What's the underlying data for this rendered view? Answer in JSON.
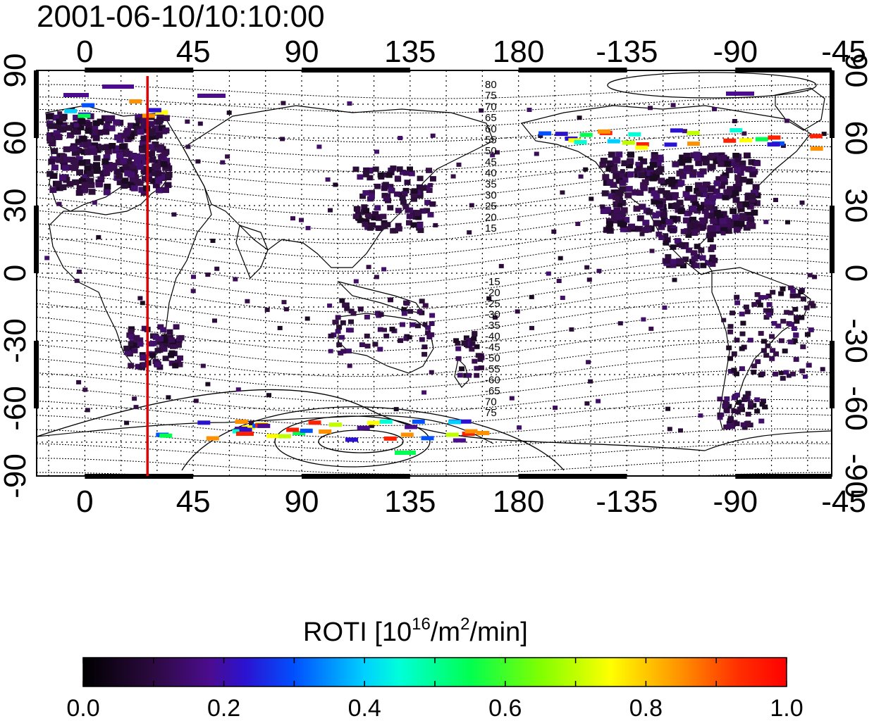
{
  "title": "2001-06-10/10:10:00",
  "map": {
    "lon_ticks_top": [
      "0",
      "45",
      "90",
      "135",
      "180",
      "-135",
      "-90",
      "-45"
    ],
    "lon_ticks_bottom": [
      "0",
      "45",
      "90",
      "135",
      "180",
      "-135",
      "-90",
      "-45"
    ],
    "lat_ticks_left": [
      "90",
      "60",
      "30",
      "0",
      "-30",
      "-60",
      "-90"
    ],
    "lat_ticks_right": [
      "90",
      "60",
      "30",
      "0",
      "-30",
      "-60",
      "-90"
    ],
    "lon_range": [
      -20,
      310
    ],
    "lat_range": [
      -90,
      90
    ],
    "grid": true,
    "terminator_longitude": 26,
    "terminator_color": "#e00000",
    "mlat_labels_north": [
      "80",
      "75",
      "70",
      "65",
      "60",
      "55",
      "50",
      "45",
      "40",
      "35",
      "30",
      "25",
      "20",
      "15"
    ],
    "mlat_labels_south": [
      "-15",
      "-20",
      "-25",
      "-30",
      "-35",
      "-40",
      "-45",
      "-50",
      "-55",
      "-60",
      "-65",
      "70",
      "75"
    ]
  },
  "colorbar": {
    "title_prefix": "ROTI  [10",
    "title_sup1": "16",
    "title_mid": "/m",
    "title_sup2": "2",
    "title_suffix": "/min]",
    "tick_labels": [
      "0.0",
      "0.2",
      "0.4",
      "0.6",
      "0.8",
      "1.0"
    ],
    "range": [
      0.0,
      1.0
    ],
    "colors": [
      "#000000",
      "#2a0a3a",
      "#4a0a8a",
      "#2010d0",
      "#0040ff",
      "#00c0ff",
      "#00ffd0",
      "#00ff40",
      "#c0ff00",
      "#ffff00",
      "#ff8000",
      "#ff2000",
      "#ff0000"
    ]
  }
}
